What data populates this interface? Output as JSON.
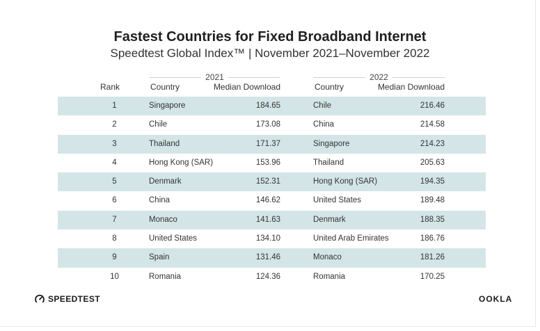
{
  "title": "Fastest Countries for Fixed Broadband Internet",
  "subtitle": "Speedtest Global Index™ | November 2021–November 2022",
  "colors": {
    "row_shade": "#d4e5e7",
    "text": "#333333"
  },
  "chart_data": {
    "type": "table",
    "columns": {
      "rank": "Rank",
      "country": "Country",
      "median": "Median Download"
    },
    "groups": [
      "2021",
      "2022"
    ],
    "rows": [
      {
        "rank": "1",
        "country_2021": "Singapore",
        "median_2021": "184.65",
        "country_2022": "Chile",
        "median_2022": "216.46"
      },
      {
        "rank": "2",
        "country_2021": "Chile",
        "median_2021": "173.08",
        "country_2022": "China",
        "median_2022": "214.58"
      },
      {
        "rank": "3",
        "country_2021": "Thailand",
        "median_2021": "171.37",
        "country_2022": "Singapore",
        "median_2022": "214.23"
      },
      {
        "rank": "4",
        "country_2021": "Hong Kong (SAR)",
        "median_2021": "153.96",
        "country_2022": "Thailand",
        "median_2022": "205.63"
      },
      {
        "rank": "5",
        "country_2021": "Denmark",
        "median_2021": "152.31",
        "country_2022": "Hong Kong (SAR)",
        "median_2022": "194.35"
      },
      {
        "rank": "6",
        "country_2021": "China",
        "median_2021": "146.62",
        "country_2022": "United States",
        "median_2022": "189.48"
      },
      {
        "rank": "7",
        "country_2021": "Monaco",
        "median_2021": "141.63",
        "country_2022": "Denmark",
        "median_2022": "188.35"
      },
      {
        "rank": "8",
        "country_2021": "United States",
        "median_2021": "134.10",
        "country_2022": "United Arab Emirates",
        "median_2022": "186.76"
      },
      {
        "rank": "9",
        "country_2021": "Spain",
        "median_2021": "131.46",
        "country_2022": "Monaco",
        "median_2022": "181.26"
      },
      {
        "rank": "10",
        "country_2021": "Romania",
        "median_2021": "124.36",
        "country_2022": "Romania",
        "median_2022": "170.25"
      }
    ]
  },
  "footer": {
    "left_brand": "SPEEDTEST",
    "left_icon": "speedometer-icon",
    "right_brand": "OOKLA"
  }
}
